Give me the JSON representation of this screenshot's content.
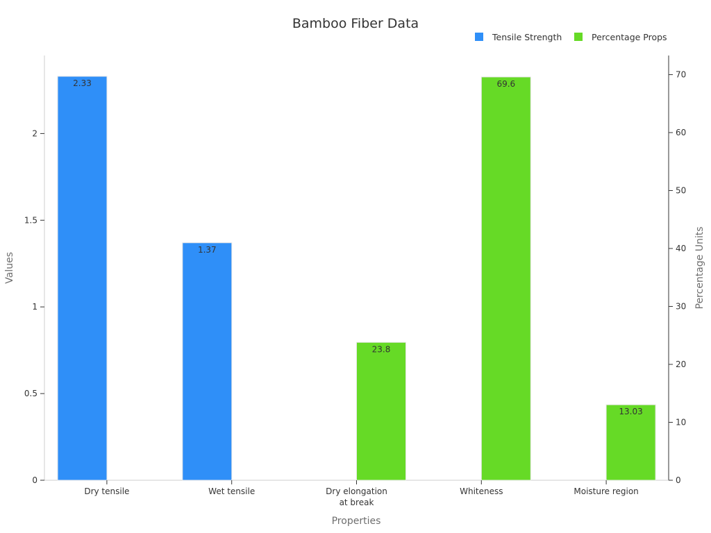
{
  "chart_data": {
    "type": "bar",
    "title": "Bamboo Fiber Data",
    "xlabel": "Properties",
    "ylabel": "Values",
    "ylabel_right": "Percentage Units",
    "categories": [
      "Dry tensile",
      "Wet tensile",
      "Dry elongation\nat break",
      "Whiteness",
      "Moisture region"
    ],
    "ylim": [
      0,
      2.45
    ],
    "yticks": [
      0,
      0.5,
      1,
      1.5,
      2
    ],
    "ytick_labels": [
      "0",
      "0.5",
      "1",
      "1.5",
      "2"
    ],
    "ylim_right": [
      0,
      73.3
    ],
    "yticks_right": [
      0,
      10,
      20,
      30,
      40,
      50,
      60,
      70
    ],
    "legend_position": "top-right",
    "grid": false,
    "series": [
      {
        "name": "Tensile Strength",
        "axis": "left",
        "color": "#2f8ff8",
        "values": [
          2.33,
          1.37,
          null,
          null,
          null
        ],
        "labels": [
          "2.33",
          "1.37",
          "",
          "",
          ""
        ]
      },
      {
        "name": "Percentage Props",
        "axis": "right",
        "color": "#66da26",
        "values": [
          null,
          null,
          23.8,
          69.6,
          13.03
        ],
        "labels": [
          "",
          "",
          "23.8",
          "69.6",
          "13.03"
        ]
      }
    ]
  }
}
